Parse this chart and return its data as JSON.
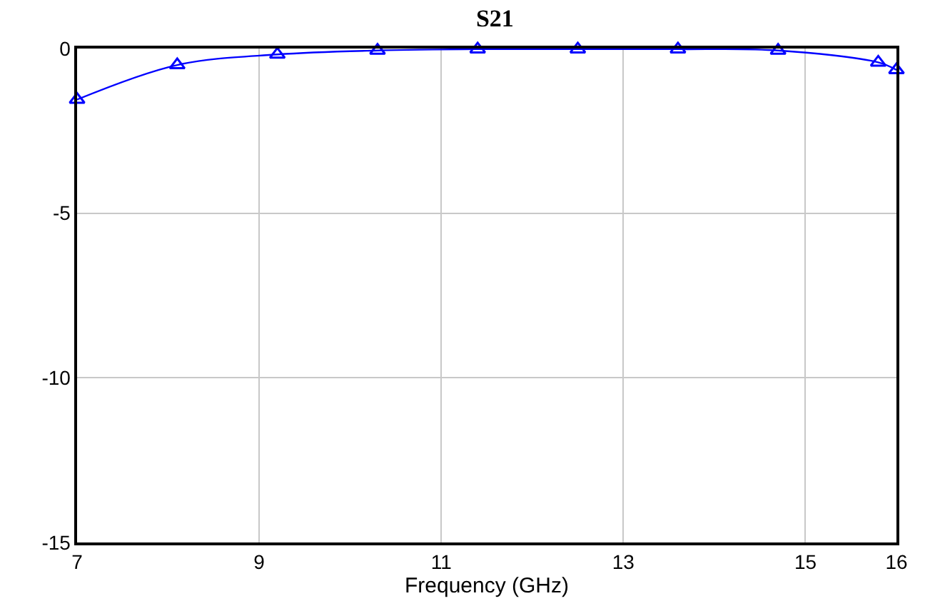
{
  "chart_data": {
    "type": "line",
    "title": "S21",
    "xlabel": "Frequency (GHz)",
    "x": [
      7,
      8.1,
      9.2,
      10.3,
      11.4,
      12.5,
      13.6,
      14.7,
      15.8,
      16
    ],
    "series": [
      {
        "color": "#0000ff",
        "values": [
          -1.55,
          -0.5,
          -0.18,
          -0.06,
          -0.02,
          -0.02,
          -0.02,
          -0.06,
          -0.42,
          -0.65
        ]
      }
    ],
    "xlim": [
      7,
      16
    ],
    "xticks": [
      7,
      9,
      11,
      13,
      15,
      16
    ],
    "ylim": [
      -15,
      0
    ],
    "yticks": [
      -15,
      -10,
      -5,
      0
    ],
    "grid": true,
    "marker": "triangle",
    "line_style": "solid"
  }
}
